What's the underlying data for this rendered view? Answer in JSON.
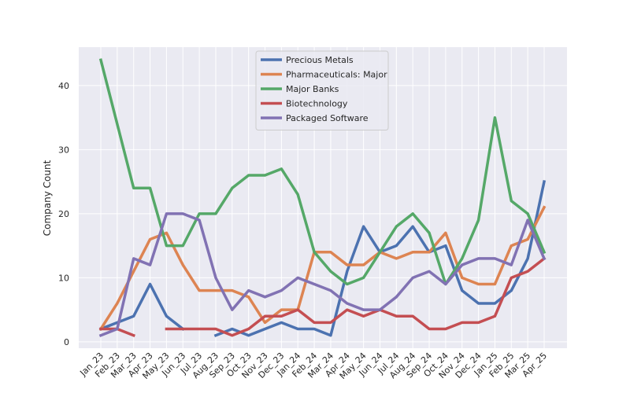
{
  "chart_data": {
    "type": "line",
    "xlabel": "",
    "ylabel": "Company Count",
    "ylim": [
      -1,
      46
    ],
    "yticks": [
      0,
      10,
      20,
      30,
      40
    ],
    "grid": true,
    "legend_position": "top-center",
    "categories": [
      "Jan_23",
      "Feb_23",
      "Mar_23",
      "Apr_23",
      "May_23",
      "Jun_23",
      "Jul_23",
      "Aug_23",
      "Sep_23",
      "Oct_23",
      "Nov_23",
      "Dec_23",
      "Jan_24",
      "Feb_24",
      "Mar_24",
      "Apr_24",
      "May_24",
      "Jun_24",
      "Jul_24",
      "Aug_24",
      "Sep_24",
      "Oct_24",
      "Nov_24",
      "Dec_24",
      "Jan_25",
      "Feb_25",
      "Mar_25",
      "Apr_25"
    ],
    "series": [
      {
        "name": "Precious Metals",
        "color": "#4c72b0",
        "values": [
          2,
          3,
          4,
          9,
          4,
          2,
          null,
          1,
          2,
          1,
          2,
          3,
          2,
          2,
          1,
          11,
          18,
          14,
          15,
          18,
          14,
          15,
          8,
          6,
          6,
          8,
          13,
          25
        ]
      },
      {
        "name": "Pharmaceuticals: Major",
        "color": "#dd8452",
        "values": [
          2,
          6,
          11,
          16,
          17,
          12,
          8,
          8,
          8,
          7,
          3,
          5,
          5,
          14,
          14,
          12,
          12,
          14,
          13,
          14,
          14,
          17,
          10,
          9,
          9,
          15,
          16,
          21
        ]
      },
      {
        "name": "Major Banks",
        "color": "#55a868",
        "values": [
          44,
          34,
          24,
          24,
          15,
          15,
          20,
          20,
          24,
          26,
          26,
          27,
          23,
          14,
          11,
          9,
          10,
          14,
          18,
          20,
          17,
          9,
          13,
          19,
          35,
          22,
          20,
          14
        ]
      },
      {
        "name": "Biotechnology",
        "color": "#c44e52",
        "values": [
          2,
          2,
          1,
          null,
          2,
          2,
          2,
          2,
          1,
          2,
          4,
          4,
          5,
          3,
          3,
          5,
          4,
          5,
          4,
          4,
          2,
          2,
          3,
          3,
          4,
          10,
          11,
          13
        ]
      },
      {
        "name": "Packaged Software",
        "color": "#8172b3",
        "values": [
          1,
          2,
          13,
          12,
          20,
          20,
          19,
          10,
          5,
          8,
          7,
          8,
          10,
          9,
          8,
          6,
          5,
          5,
          7,
          10,
          11,
          9,
          12,
          13,
          13,
          12,
          19,
          13
        ]
      }
    ]
  }
}
